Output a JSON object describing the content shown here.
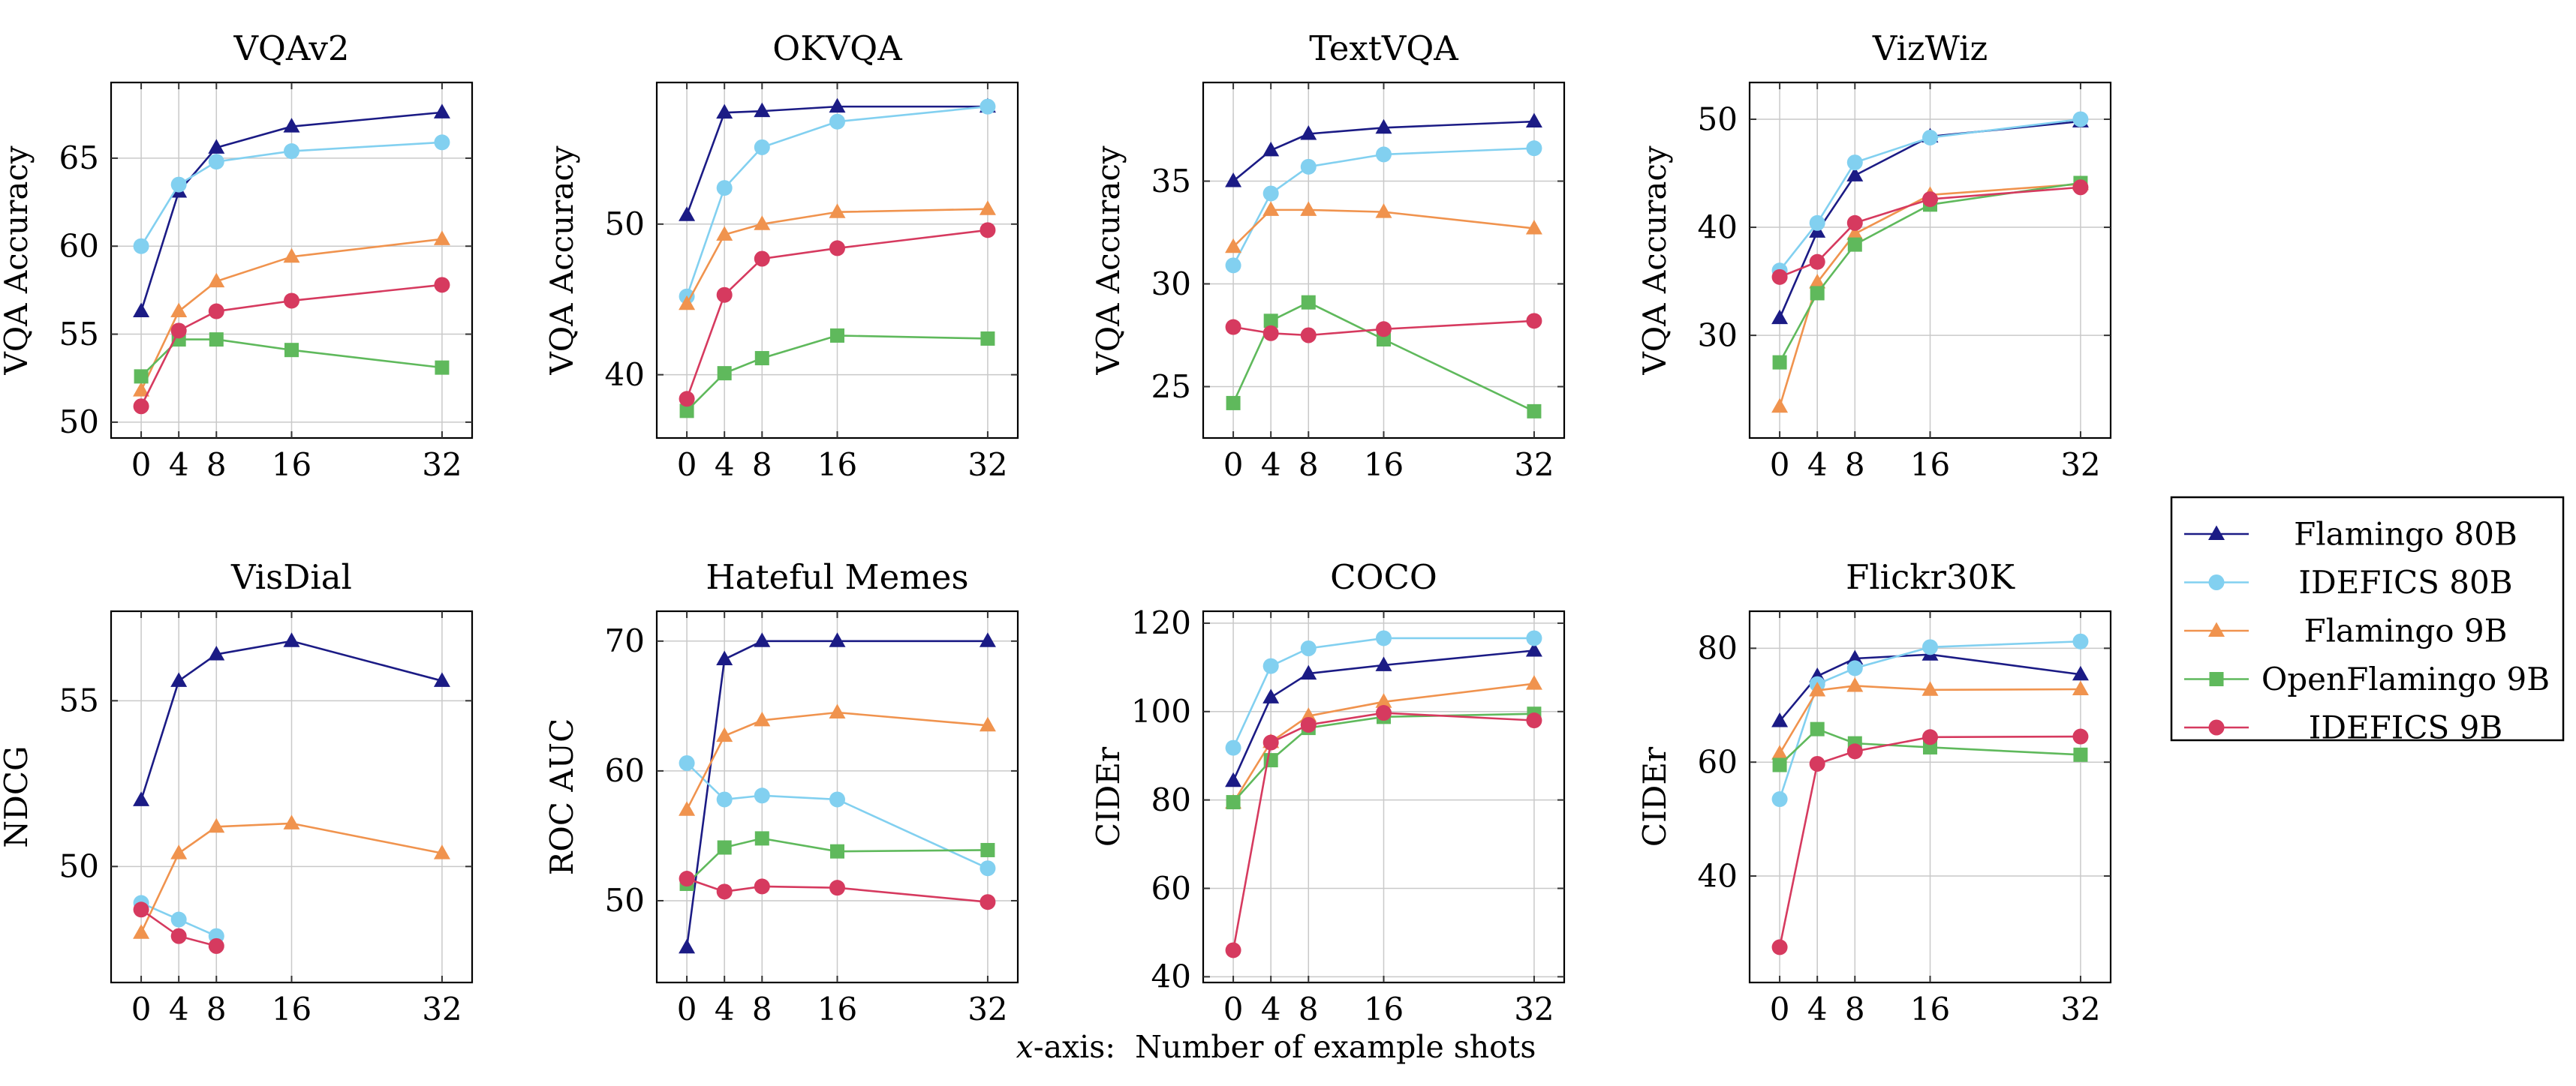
{
  "figure": {
    "background": "#ffffff",
    "grid_color": "#c9c9c9",
    "axis_color": "#000000",
    "caption": {
      "italic_x": "x",
      "rest": "-axis:  Number of example shots"
    }
  },
  "models": [
    {
      "name": "Flamingo 80B",
      "color": "#1B1B85",
      "marker": "triangle"
    },
    {
      "name": "IDEFICS 80B",
      "color": "#82D0F0",
      "marker": "circle"
    },
    {
      "name": "Flamingo 9B",
      "color": "#F0934E",
      "marker": "triangle"
    },
    {
      "name": "OpenFlamingo 9B",
      "color": "#5FB95C",
      "marker": "square"
    },
    {
      "name": "IDEFICS 9B",
      "color": "#D63A5F",
      "marker": "circle"
    }
  ],
  "legend": {
    "entries": [
      "Flamingo 80B",
      "IDEFICS 80B",
      "Flamingo 9B",
      "OpenFlamingo 9B",
      "IDEFICS 9B"
    ]
  },
  "chart_data": [
    {
      "id": "vqav2",
      "type": "line",
      "title": "VQAv2",
      "ylabel": "VQA Accuracy",
      "x_ticks": [
        0,
        4,
        8,
        16,
        32
      ],
      "xlim": [
        -3.2,
        35.2
      ],
      "ylim": [
        49.1,
        69.3
      ],
      "y_ticks": [
        50,
        55,
        60,
        65
      ],
      "grid": true,
      "series": [
        {
          "name": "Flamingo 80B",
          "x": [
            0,
            4,
            8,
            16,
            32
          ],
          "y": [
            56.3,
            63.1,
            65.6,
            66.8,
            67.6
          ]
        },
        {
          "name": "IDEFICS 80B",
          "x": [
            0,
            4,
            8,
            16,
            32
          ],
          "y": [
            60.0,
            63.5,
            64.8,
            65.4,
            65.9
          ]
        },
        {
          "name": "Flamingo 9B",
          "x": [
            0,
            4,
            8,
            16,
            32
          ],
          "y": [
            51.8,
            56.3,
            58.0,
            59.4,
            60.4
          ]
        },
        {
          "name": "OpenFlamingo 9B",
          "x": [
            0,
            4,
            8,
            16,
            32
          ],
          "y": [
            52.6,
            54.7,
            54.7,
            54.1,
            53.1
          ]
        },
        {
          "name": "IDEFICS 9B",
          "x": [
            0,
            4,
            8,
            16,
            32
          ],
          "y": [
            50.9,
            55.2,
            56.3,
            56.9,
            57.8
          ]
        }
      ]
    },
    {
      "id": "okvqa",
      "type": "line",
      "title": "OKVQA",
      "ylabel": "VQA Accuracy",
      "x_ticks": [
        0,
        4,
        8,
        16,
        32
      ],
      "xlim": [
        -3.2,
        35.2
      ],
      "ylim": [
        35.8,
        59.4
      ],
      "y_ticks": [
        40,
        50
      ],
      "grid": true,
      "series": [
        {
          "name": "Flamingo 80B",
          "x": [
            0,
            4,
            8,
            16,
            32
          ],
          "y": [
            50.6,
            57.4,
            57.5,
            57.8,
            57.8
          ]
        },
        {
          "name": "IDEFICS 80B",
          "x": [
            0,
            4,
            8,
            16,
            32
          ],
          "y": [
            45.2,
            52.4,
            55.1,
            56.8,
            57.8
          ]
        },
        {
          "name": "Flamingo 9B",
          "x": [
            0,
            4,
            8,
            16,
            32
          ],
          "y": [
            44.7,
            49.3,
            50.0,
            50.8,
            51.0
          ]
        },
        {
          "name": "OpenFlamingo 9B",
          "x": [
            0,
            4,
            8,
            16,
            32
          ],
          "y": [
            37.6,
            40.1,
            41.1,
            42.6,
            42.4
          ]
        },
        {
          "name": "IDEFICS 9B",
          "x": [
            0,
            4,
            8,
            16,
            32
          ],
          "y": [
            38.4,
            45.3,
            47.7,
            48.4,
            49.6
          ]
        }
      ]
    },
    {
      "id": "textvqa",
      "type": "line",
      "title": "TextVQA",
      "ylabel": "VQA Accuracy",
      "x_ticks": [
        0,
        4,
        8,
        16,
        32
      ],
      "xlim": [
        -3.2,
        35.2
      ],
      "ylim": [
        22.5,
        39.8
      ],
      "y_ticks": [
        25,
        30,
        35
      ],
      "grid": true,
      "series": [
        {
          "name": "Flamingo 80B",
          "x": [
            0,
            4,
            8,
            16,
            32
          ],
          "y": [
            35.0,
            36.5,
            37.3,
            37.6,
            37.9
          ]
        },
        {
          "name": "IDEFICS 80B",
          "x": [
            0,
            4,
            8,
            16,
            32
          ],
          "y": [
            30.9,
            34.4,
            35.7,
            36.3,
            36.6
          ]
        },
        {
          "name": "Flamingo 9B",
          "x": [
            0,
            4,
            8,
            16,
            32
          ],
          "y": [
            31.8,
            33.6,
            33.6,
            33.5,
            32.7
          ]
        },
        {
          "name": "OpenFlamingo 9B",
          "x": [
            0,
            4,
            8,
            16,
            32
          ],
          "y": [
            24.2,
            28.2,
            29.1,
            27.3,
            23.8
          ]
        },
        {
          "name": "IDEFICS 9B",
          "x": [
            0,
            4,
            8,
            16,
            32
          ],
          "y": [
            27.9,
            27.6,
            27.5,
            27.8,
            28.2
          ]
        }
      ]
    },
    {
      "id": "vizwiz",
      "type": "line",
      "title": "VizWiz",
      "ylabel": "VQA Accuracy",
      "x_ticks": [
        0,
        4,
        8,
        16,
        32
      ],
      "xlim": [
        -3.2,
        35.2
      ],
      "ylim": [
        20.5,
        53.4
      ],
      "y_ticks": [
        30,
        40,
        50
      ],
      "grid": true,
      "series": [
        {
          "name": "Flamingo 80B",
          "x": [
            0,
            4,
            8,
            16,
            32
          ],
          "y": [
            31.6,
            39.6,
            44.8,
            48.4,
            49.8
          ]
        },
        {
          "name": "IDEFICS 80B",
          "x": [
            0,
            4,
            8,
            16,
            32
          ],
          "y": [
            36.0,
            40.4,
            46.0,
            48.3,
            50.0
          ]
        },
        {
          "name": "Flamingo 9B",
          "x": [
            0,
            4,
            8,
            16,
            32
          ],
          "y": [
            23.4,
            34.9,
            39.4,
            43.0,
            44.0
          ]
        },
        {
          "name": "OpenFlamingo 9B",
          "x": [
            0,
            4,
            8,
            16,
            32
          ],
          "y": [
            27.5,
            33.9,
            38.4,
            42.1,
            44.1
          ]
        },
        {
          "name": "IDEFICS 9B",
          "x": [
            0,
            4,
            8,
            16,
            32
          ],
          "y": [
            35.4,
            36.8,
            40.4,
            42.6,
            43.7
          ]
        }
      ]
    },
    {
      "id": "visdial",
      "type": "line",
      "title": "VisDial",
      "ylabel": "NDCG",
      "x_ticks": [
        0,
        4,
        8,
        16,
        32
      ],
      "xlim": [
        -3.2,
        35.2
      ],
      "ylim": [
        46.5,
        57.7
      ],
      "y_ticks": [
        50,
        55
      ],
      "grid": true,
      "series": [
        {
          "name": "Flamingo 80B",
          "x": [
            0,
            4,
            8,
            16,
            32
          ],
          "y": [
            52.0,
            55.6,
            56.4,
            56.8,
            55.6
          ]
        },
        {
          "name": "IDEFICS 80B",
          "x": [
            0,
            4,
            8
          ],
          "y": [
            48.9,
            48.4,
            47.9
          ]
        },
        {
          "name": "Flamingo 9B",
          "x": [
            0,
            4,
            8,
            16,
            32
          ],
          "y": [
            48.0,
            50.4,
            51.2,
            51.3,
            50.4
          ]
        },
        {
          "name": "IDEFICS 9B",
          "x": [
            0,
            4,
            8
          ],
          "y": [
            48.7,
            47.9,
            47.6
          ]
        }
      ]
    },
    {
      "id": "hateful-memes",
      "type": "line",
      "title": "Hateful Memes",
      "ylabel": "ROC AUC",
      "x_ticks": [
        0,
        4,
        8,
        16,
        32
      ],
      "xlim": [
        -3.2,
        35.2
      ],
      "ylim": [
        43.7,
        72.3
      ],
      "y_ticks": [
        50,
        60,
        70
      ],
      "grid": true,
      "series": [
        {
          "name": "Flamingo 80B",
          "x": [
            0,
            4,
            8,
            16,
            32
          ],
          "y": [
            46.4,
            68.6,
            70.0,
            70.0,
            70.0
          ]
        },
        {
          "name": "IDEFICS 80B",
          "x": [
            0,
            4,
            8,
            16,
            32
          ],
          "y": [
            60.6,
            57.8,
            58.1,
            57.8,
            52.5
          ]
        },
        {
          "name": "Flamingo 9B",
          "x": [
            0,
            4,
            8,
            16,
            32
          ],
          "y": [
            57.0,
            62.7,
            63.9,
            64.5,
            63.5
          ]
        },
        {
          "name": "OpenFlamingo 9B",
          "x": [
            0,
            4,
            8,
            16,
            32
          ],
          "y": [
            51.3,
            54.1,
            54.8,
            53.8,
            53.9
          ]
        },
        {
          "name": "IDEFICS 9B",
          "x": [
            0,
            4,
            8,
            16,
            32
          ],
          "y": [
            51.7,
            50.7,
            51.1,
            51.0,
            49.9
          ]
        }
      ]
    },
    {
      "id": "coco",
      "type": "line",
      "title": "COCO",
      "ylabel": "CIDEr",
      "x_ticks": [
        0,
        4,
        8,
        16,
        32
      ],
      "xlim": [
        -3.2,
        35.2
      ],
      "ylim": [
        38.7,
        122.7
      ],
      "y_ticks": [
        40,
        60,
        80,
        100,
        120
      ],
      "grid": true,
      "series": [
        {
          "name": "Flamingo 80B",
          "x": [
            0,
            4,
            8,
            16,
            32
          ],
          "y": [
            84.3,
            103.2,
            108.6,
            110.5,
            113.8
          ]
        },
        {
          "name": "IDEFICS 80B",
          "x": [
            0,
            4,
            8,
            16,
            32
          ],
          "y": [
            91.8,
            110.3,
            114.3,
            116.6,
            116.6
          ]
        },
        {
          "name": "Flamingo 9B",
          "x": [
            0,
            4,
            8,
            16,
            32
          ],
          "y": [
            79.4,
            93.1,
            99.0,
            102.2,
            106.3
          ]
        },
        {
          "name": "OpenFlamingo 9B",
          "x": [
            0,
            4,
            8,
            16,
            32
          ],
          "y": [
            79.5,
            89.0,
            96.3,
            98.8,
            99.5
          ]
        },
        {
          "name": "IDEFICS 9B",
          "x": [
            0,
            4,
            8,
            16,
            32
          ],
          "y": [
            46.0,
            93.0,
            97.0,
            99.7,
            98.0
          ]
        }
      ]
    },
    {
      "id": "flickr30k",
      "type": "line",
      "title": "Flickr30K",
      "ylabel": "CIDEr",
      "x_ticks": [
        0,
        4,
        8,
        16,
        32
      ],
      "xlim": [
        -3.2,
        35.2
      ],
      "ylim": [
        21.3,
        86.5
      ],
      "y_ticks": [
        40,
        60,
        80
      ],
      "grid": true,
      "series": [
        {
          "name": "Flamingo 80B",
          "x": [
            0,
            4,
            8,
            16,
            32
          ],
          "y": [
            67.2,
            75.1,
            78.2,
            78.9,
            75.4
          ]
        },
        {
          "name": "IDEFICS 80B",
          "x": [
            0,
            4,
            8,
            16,
            32
          ],
          "y": [
            53.5,
            73.7,
            76.5,
            80.2,
            81.2
          ]
        },
        {
          "name": "Flamingo 9B",
          "x": [
            0,
            4,
            8,
            16,
            32
          ],
          "y": [
            61.5,
            72.6,
            73.4,
            72.7,
            72.8
          ]
        },
        {
          "name": "OpenFlamingo 9B",
          "x": [
            0,
            4,
            8,
            16,
            32
          ],
          "y": [
            59.5,
            65.8,
            63.3,
            62.6,
            61.3
          ]
        },
        {
          "name": "IDEFICS 9B",
          "x": [
            0,
            4,
            8,
            16,
            32
          ],
          "y": [
            27.5,
            59.7,
            61.9,
            64.4,
            64.5
          ]
        }
      ]
    }
  ]
}
